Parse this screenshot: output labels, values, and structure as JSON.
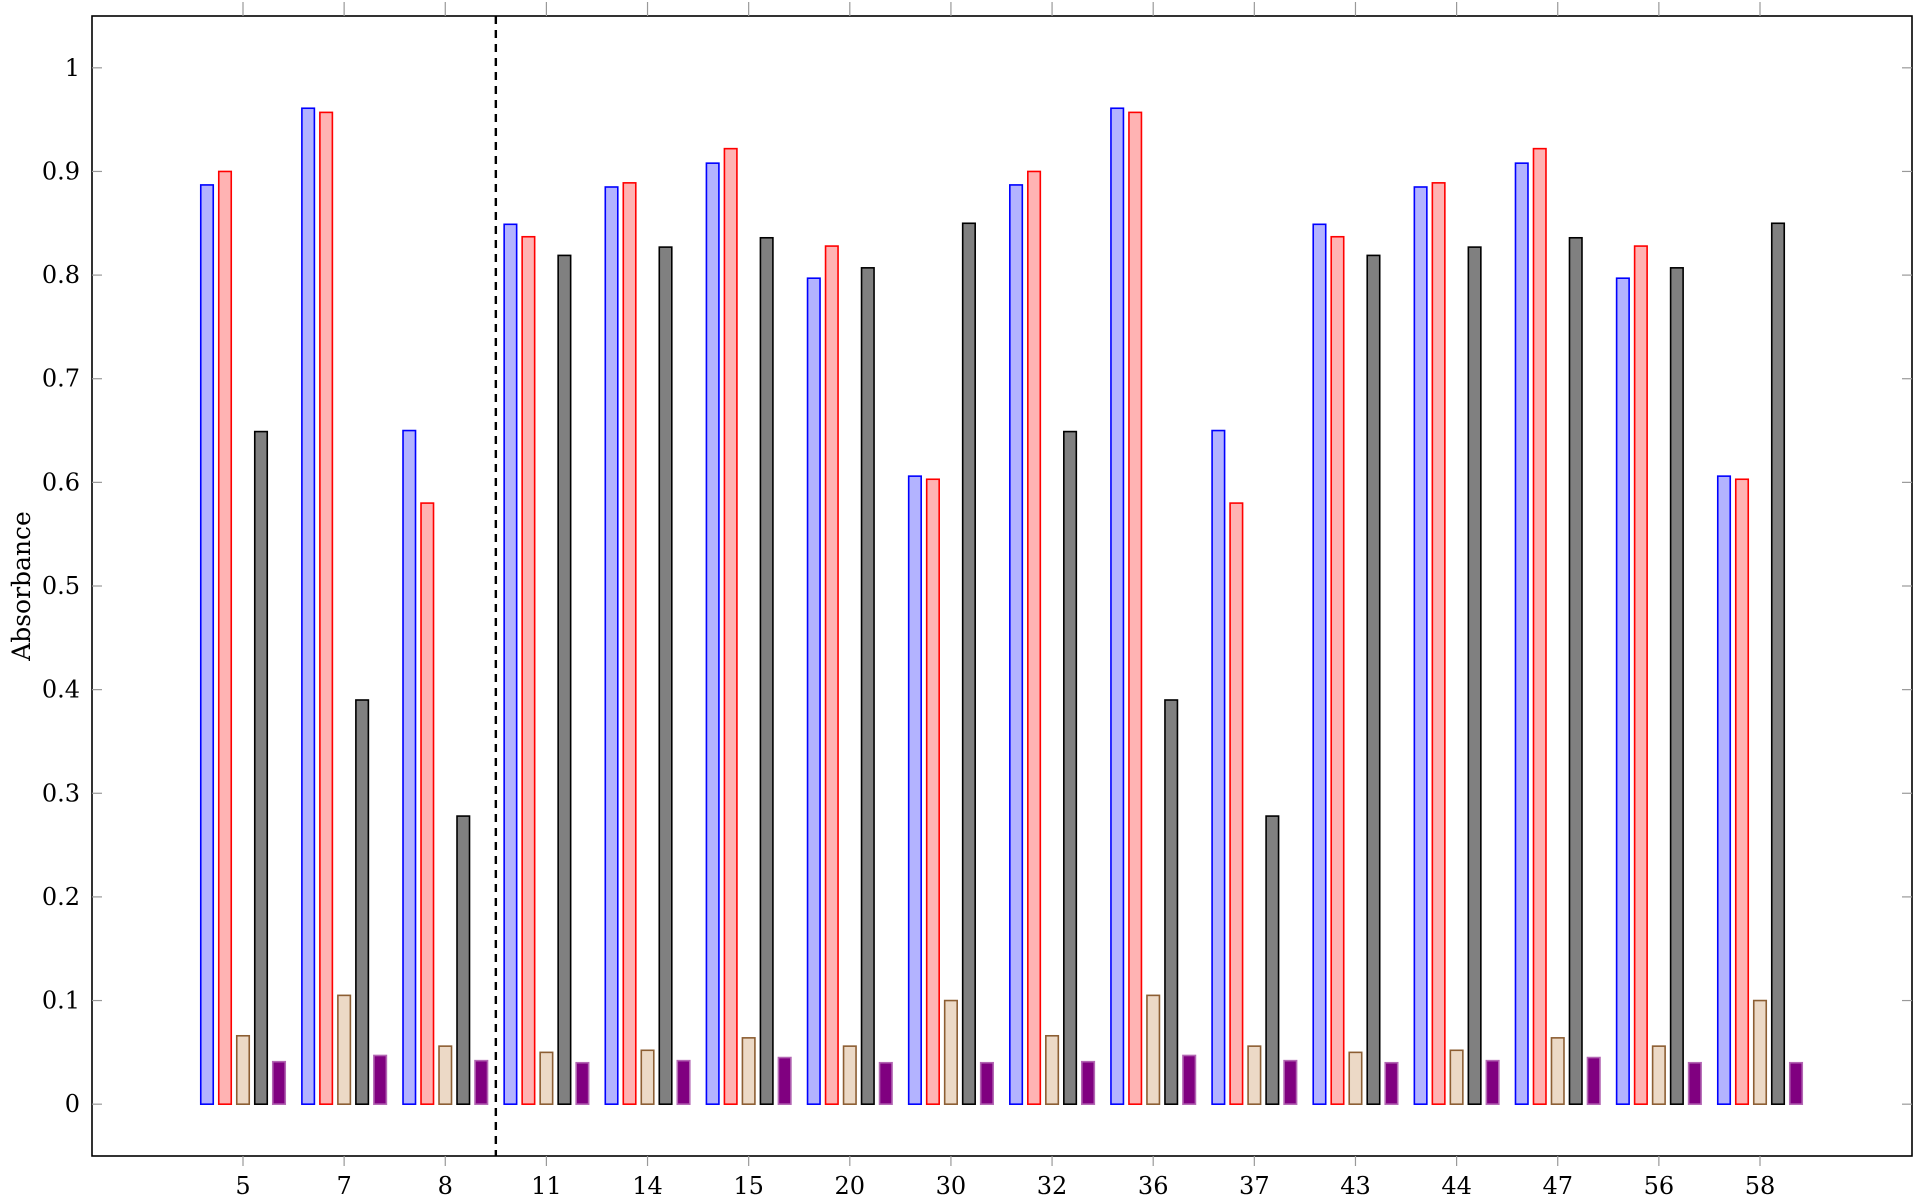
{
  "chart_data": {
    "type": "bar",
    "title": "",
    "xlabel": "",
    "ylabel": "Absorbance",
    "ylim": [
      -0.05,
      1.05
    ],
    "yticks": [
      0,
      0.1,
      0.2,
      0.3,
      0.4,
      0.5,
      0.6,
      0.7,
      0.8,
      0.9,
      1
    ],
    "ytick_labels": [
      "0",
      "0.1",
      "0.2",
      "0.3",
      "0.4",
      "0.5",
      "0.6",
      "0.7",
      "0.8",
      "0.9",
      "1"
    ],
    "categories": [
      "5",
      "7",
      "8",
      "11",
      "14",
      "15",
      "20",
      "30",
      "32",
      "36",
      "37",
      "43",
      "44",
      "47",
      "56",
      "58"
    ],
    "grid": false,
    "legend": "none",
    "divider_after_category": "8",
    "series": [
      {
        "fill": "#b3b3ff",
        "stroke": "#0000ff",
        "values": [
          0.887,
          0.961,
          0.65,
          0.849,
          0.885,
          0.908,
          0.797,
          0.606,
          0.887,
          0.961,
          0.65,
          0.849,
          0.885,
          0.908,
          0.797,
          0.606
        ]
      },
      {
        "fill": "#ffb3b3",
        "stroke": "#ff0000",
        "values": [
          0.9,
          0.957,
          0.58,
          0.837,
          0.889,
          0.922,
          0.828,
          0.603,
          0.9,
          0.957,
          0.58,
          0.837,
          0.889,
          0.922,
          0.828,
          0.603
        ]
      },
      {
        "fill": "#ecd9c6",
        "stroke": "#8c5e33",
        "values": [
          0.066,
          0.105,
          0.056,
          0.05,
          0.052,
          0.064,
          0.056,
          0.1,
          0.066,
          0.105,
          0.056,
          0.05,
          0.052,
          0.064,
          0.056,
          0.1
        ]
      },
      {
        "fill": "#808080",
        "stroke": "#000000",
        "values": [
          0.649,
          0.39,
          0.278,
          0.819,
          0.827,
          0.836,
          0.807,
          0.85,
          0.649,
          0.39,
          0.278,
          0.819,
          0.827,
          0.836,
          0.807,
          0.85
        ]
      },
      {
        "fill": "#800080",
        "stroke": "#b366b3",
        "values": [
          0.041,
          0.047,
          0.042,
          0.04,
          0.042,
          0.045,
          0.04,
          0.04,
          0.041,
          0.047,
          0.042,
          0.04,
          0.042,
          0.045,
          0.04,
          0.04
        ]
      }
    ]
  }
}
